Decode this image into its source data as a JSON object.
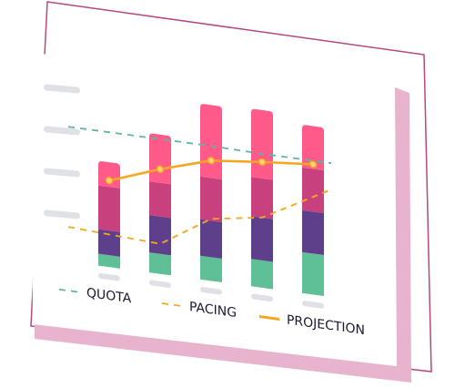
{
  "chart_data": {
    "type": "bar",
    "stacked": true,
    "categories": [
      null,
      null,
      null,
      null,
      null
    ],
    "ylim": [
      0,
      200
    ],
    "series": [
      {
        "name": null,
        "color": "#5fbf97",
        "values": [
          13,
          22,
          26,
          30,
          45
        ]
      },
      {
        "name": null,
        "color": "#5e3f8c",
        "values": [
          27,
          41,
          40,
          47,
          46
        ]
      },
      {
        "name": null,
        "color": "#c9407f",
        "values": [
          48,
          37,
          47,
          43,
          47
        ]
      },
      {
        "name": null,
        "color": "#ff5a8a",
        "values": [
          27,
          53,
          80,
          75,
          47
        ]
      }
    ],
    "lines": [
      {
        "name": "QUOTA",
        "color": "#5fb5a0",
        "dash": true,
        "values": [
          148,
          148,
          148,
          147,
          147
        ]
      },
      {
        "name": "PACING",
        "color": "#f5a623",
        "dash": true,
        "values": [
          38,
          33,
          68,
          77,
          118
        ]
      },
      {
        "name": "PROJECTION",
        "color": "#f5a623",
        "dash": false,
        "markers": true,
        "values": [
          95,
          115,
          132,
          138,
          143
        ]
      }
    ]
  }
}
